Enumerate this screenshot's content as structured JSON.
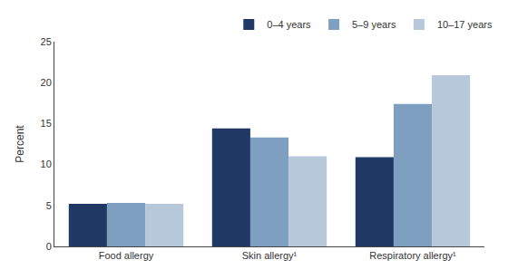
{
  "chart_data": {
    "type": "bar",
    "categories": [
      "Food allergy",
      "Skin allergy¹",
      "Respiratory allergy¹"
    ],
    "series": [
      {
        "name": "0–4 years",
        "color": "#1f3864",
        "values": [
          5.2,
          14.4,
          10.9
        ]
      },
      {
        "name": "5–9 years",
        "color": "#7f9fc0",
        "values": [
          5.3,
          13.3,
          17.4
        ]
      },
      {
        "name": "10–17 years",
        "color": "#b8c8db",
        "values": [
          5.2,
          11.0,
          20.9
        ]
      }
    ],
    "ylabel": "Percent",
    "ylim": [
      0,
      25
    ],
    "yticks": [
      0,
      5,
      10,
      15,
      20,
      25
    ],
    "grid": false,
    "legend": "top"
  }
}
